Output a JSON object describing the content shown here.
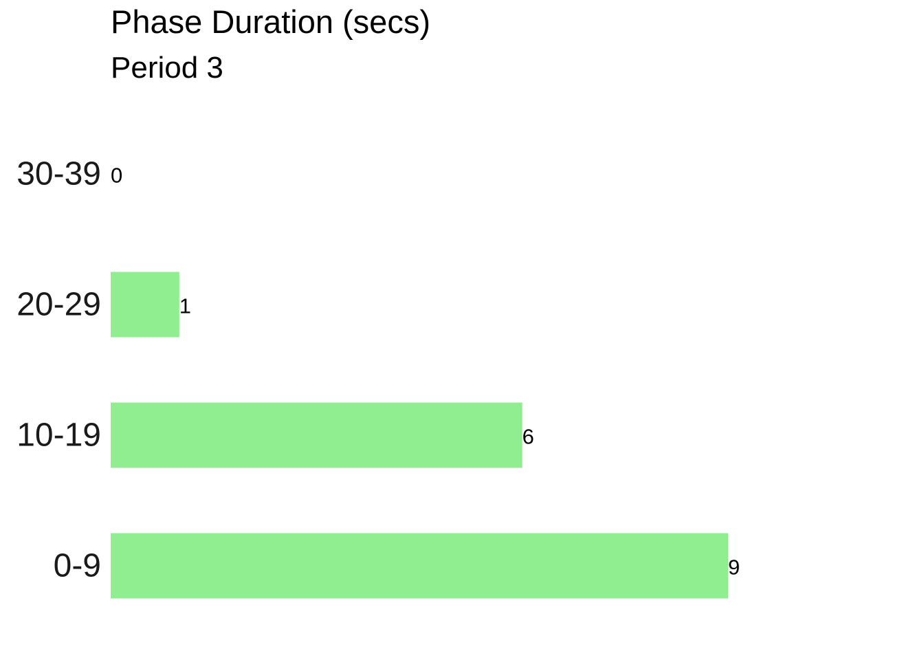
{
  "chart_data": {
    "type": "bar",
    "orientation": "horizontal",
    "title": "Phase Duration (secs)",
    "subtitle": "Period 3",
    "categories": [
      "0-9",
      "10-19",
      "20-29",
      "30-39"
    ],
    "values": [
      9,
      6,
      1,
      0
    ],
    "data_labels": [
      "9",
      "6",
      "1",
      "0"
    ],
    "xlim": [
      0,
      9
    ],
    "grid": false,
    "legend": "none",
    "bar_color": "#90EE90"
  }
}
